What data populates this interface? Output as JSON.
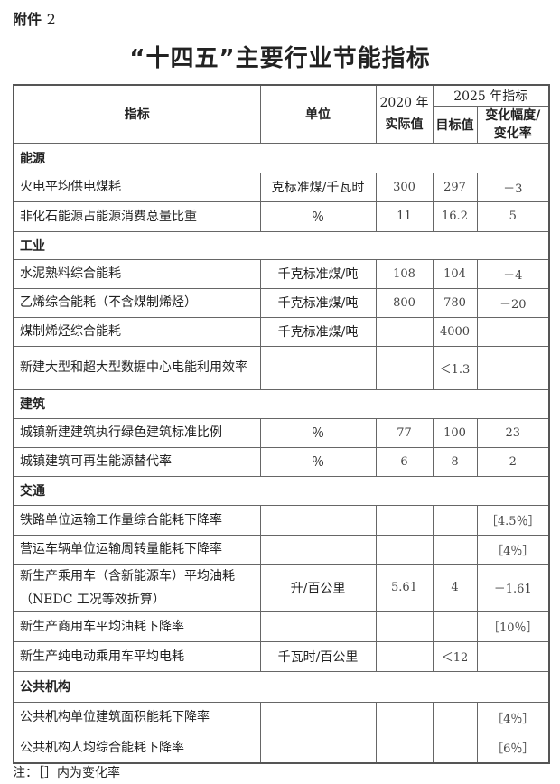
{
  "attachment": {
    "label": "附件",
    "number": "2"
  },
  "title": "“十四五”主要行业节能指标",
  "header": {
    "indicator": "指标",
    "unit": "单位",
    "actual_2020_year": "2020 年",
    "actual_2020_label": "实际值",
    "target_2025": "2025 年指标",
    "target_value": "目标值",
    "change": "变化幅度/变化率"
  },
  "sections": [
    {
      "name": "能源",
      "rows": [
        {
          "indicator": "火电平均供电煤耗",
          "unit": "克标准煤/千瓦时",
          "actual": "300",
          "target": "297",
          "change": "－3"
        },
        {
          "indicator": "非化石能源占能源消费总量比重",
          "unit": "％",
          "actual": "11",
          "target": "16.2",
          "change": "5"
        }
      ]
    },
    {
      "name": "工业",
      "rows": [
        {
          "indicator": "水泥熟料综合能耗",
          "unit": "千克标准煤/吨",
          "actual": "108",
          "target": "104",
          "change": "－4"
        },
        {
          "indicator": "乙烯综合能耗（不含煤制烯烃）",
          "unit": "千克标准煤/吨",
          "actual": "800",
          "target": "780",
          "change": "－20"
        },
        {
          "indicator": "煤制烯烃综合能耗",
          "unit": "千克标准煤/吨",
          "actual": "",
          "target": "4000",
          "change": ""
        },
        {
          "indicator": "新建大型和超大型数据中心电能利用效率",
          "unit": "",
          "actual": "",
          "target": "＜1.3",
          "change": ""
        }
      ]
    },
    {
      "name": "建筑",
      "rows": [
        {
          "indicator": "城镇新建建筑执行绿色建筑标准比例",
          "unit": "％",
          "actual": "77",
          "target": "100",
          "change": "23"
        },
        {
          "indicator": "城镇建筑可再生能源替代率",
          "unit": "％",
          "actual": "6",
          "target": "8",
          "change": "2"
        }
      ]
    },
    {
      "name": "交通",
      "rows": [
        {
          "indicator": "铁路单位运输工作量综合能耗下降率",
          "unit": "",
          "actual": "",
          "target": "",
          "change": "［4.5％］"
        },
        {
          "indicator": "营运车辆单位运输周转量能耗下降率",
          "unit": "",
          "actual": "",
          "target": "",
          "change": "［4％］"
        },
        {
          "indicator": "新生产乘用车（含新能源车）平均油耗（NEDC 工况等效折算）",
          "unit": "升/百公里",
          "actual": "5.61",
          "target": "4",
          "change": "－1.61"
        },
        {
          "indicator": "新生产商用车平均油耗下降率",
          "unit": "",
          "actual": "",
          "target": "",
          "change": "［10％］"
        },
        {
          "indicator": "新生产纯电动乘用车平均电耗",
          "unit": "千瓦时/百公里",
          "actual": "",
          "target": "＜12",
          "change": ""
        }
      ]
    },
    {
      "name": "公共机构",
      "rows": [
        {
          "indicator": "公共机构单位建筑面积能耗下降率",
          "unit": "",
          "actual": "",
          "target": "",
          "change": "［4％］"
        },
        {
          "indicator": "公共机构人均综合能耗下降率",
          "unit": "",
          "actual": "",
          "target": "",
          "change": "［6％］"
        }
      ]
    }
  ],
  "note": "注：［］内为变化率"
}
